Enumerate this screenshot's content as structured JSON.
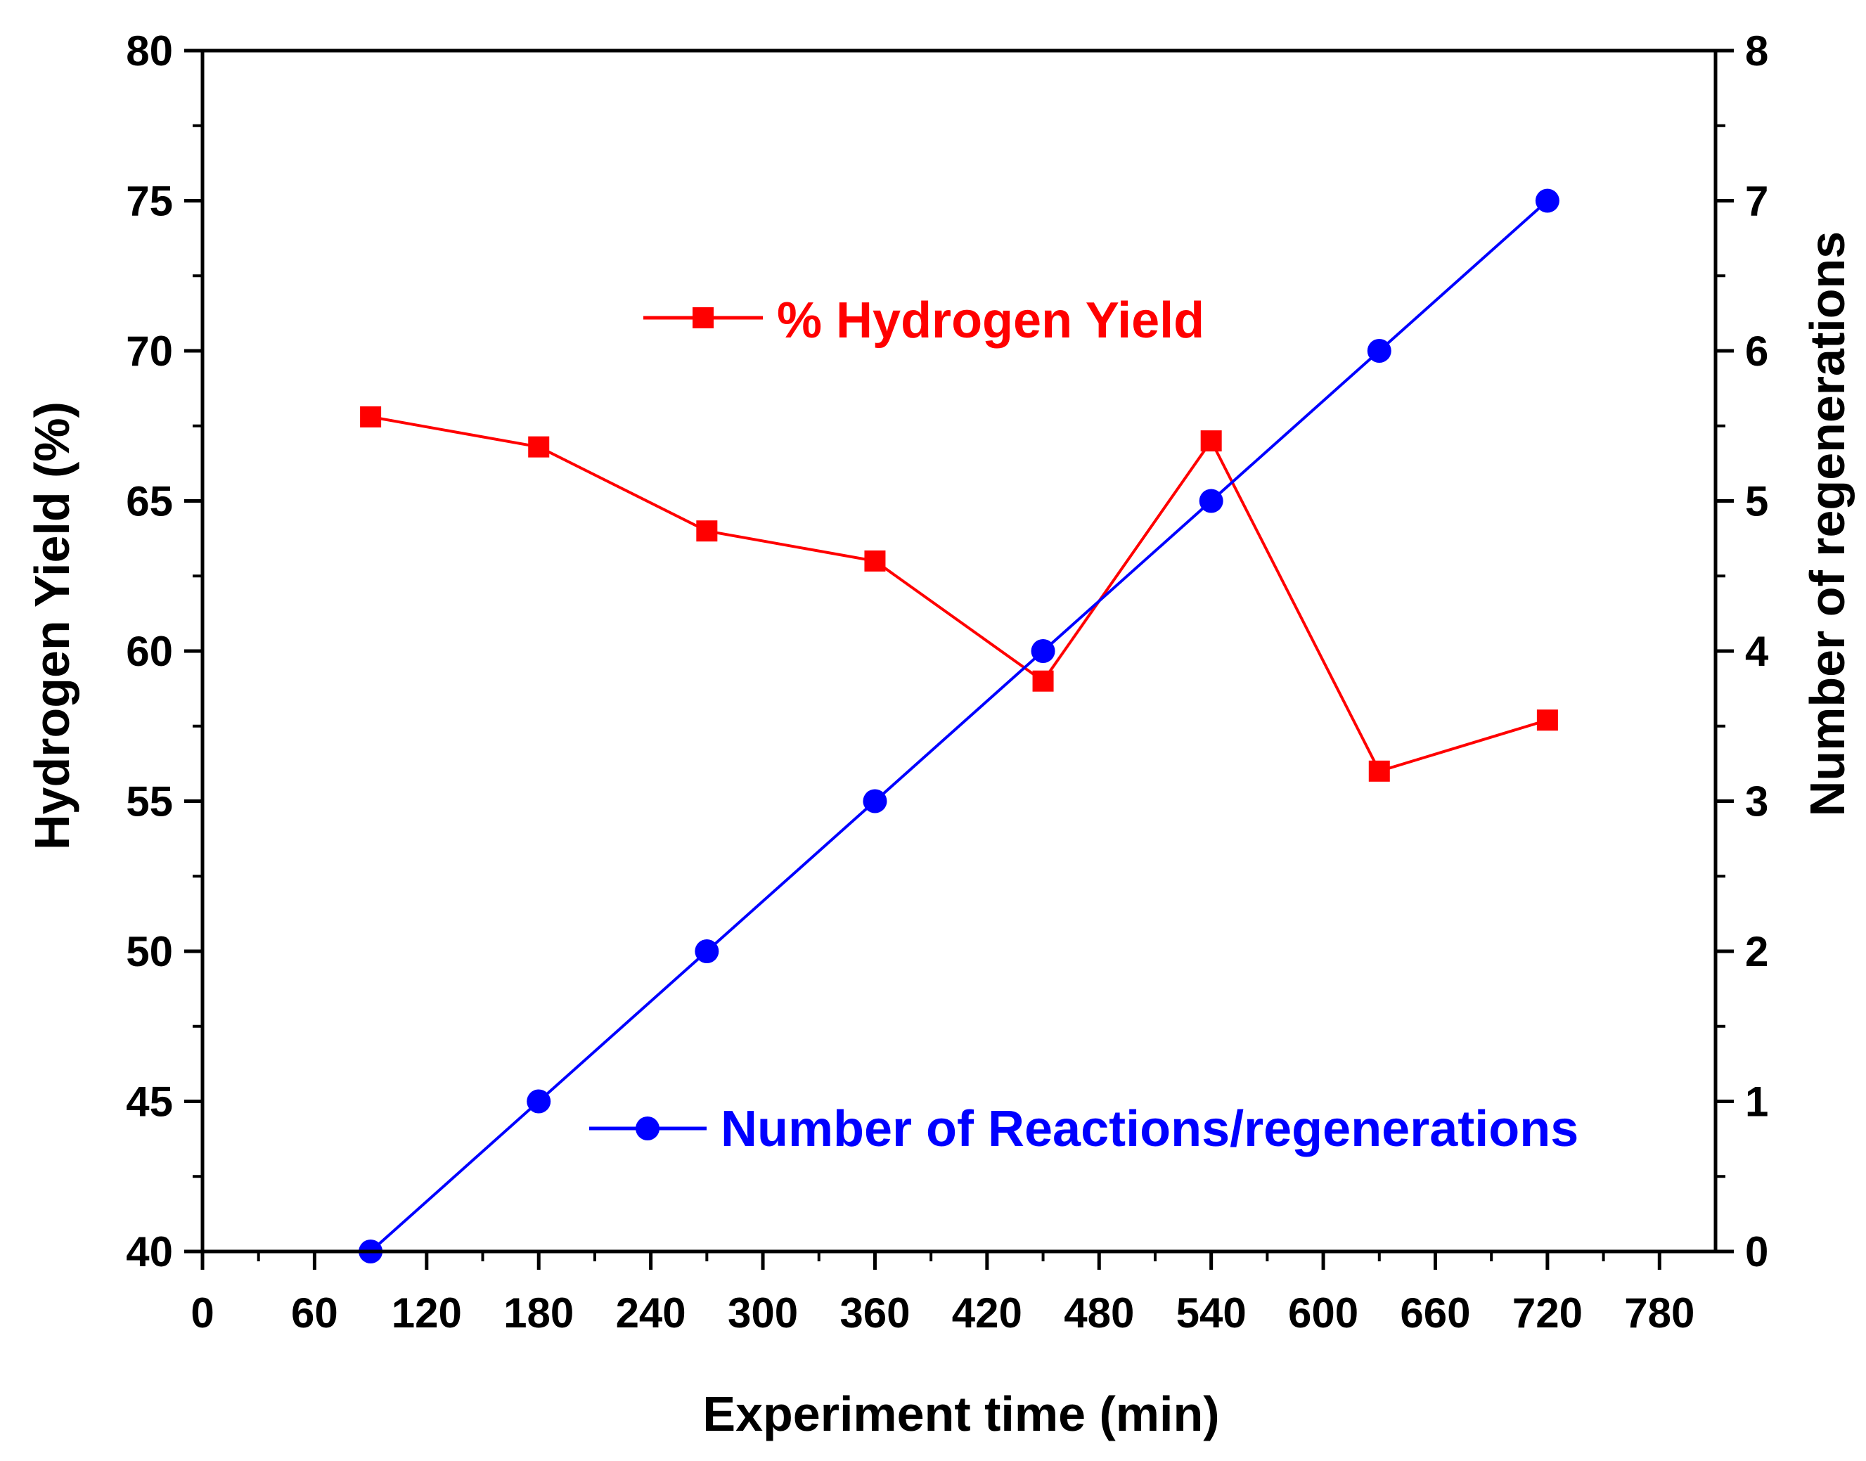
{
  "chart_data": {
    "type": "line",
    "title": "",
    "xlabel": "Experiment time (min)",
    "ylabel_left": "Hydrogen Yield (%)",
    "ylabel_right": "Number of regenerations",
    "xlim": [
      0,
      810
    ],
    "xticks": [
      0,
      60,
      120,
      180,
      240,
      300,
      360,
      420,
      480,
      540,
      600,
      660,
      720,
      780
    ],
    "ylim_left": [
      40,
      80
    ],
    "yticks_left": [
      40,
      45,
      50,
      55,
      60,
      65,
      70,
      75,
      80
    ],
    "ylim_right": [
      0,
      8
    ],
    "yticks_right": [
      0,
      1,
      2,
      3,
      4,
      5,
      6,
      7,
      8
    ],
    "grid": false,
    "series": [
      {
        "name": "% Hydrogen Yield",
        "axis": "left",
        "marker": "square",
        "color": "#ff0000",
        "x": [
          90,
          180,
          270,
          360,
          450,
          540,
          630,
          720
        ],
        "values": [
          67.8,
          66.8,
          64.0,
          63.0,
          59.0,
          67.0,
          56.0,
          57.7
        ]
      },
      {
        "name": "Number of Reactions/regenerations",
        "axis": "right",
        "marker": "circle",
        "color": "#0000ff",
        "x": [
          90,
          180,
          270,
          360,
          450,
          540,
          630,
          720
        ],
        "values": [
          0,
          1,
          2,
          3,
          4,
          5,
          6,
          7
        ]
      }
    ]
  }
}
